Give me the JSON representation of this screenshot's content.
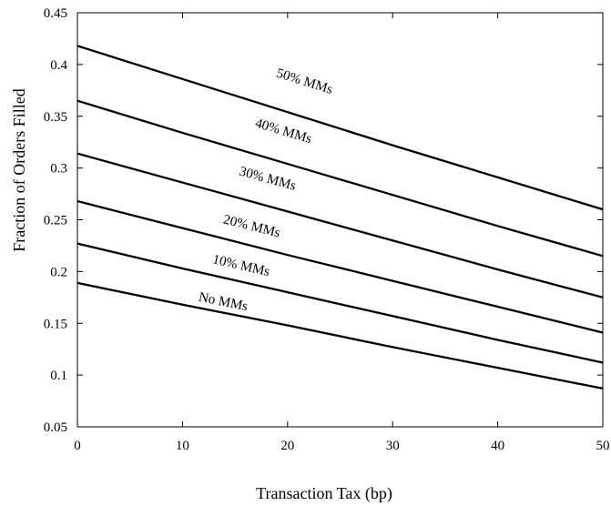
{
  "chart_data": {
    "type": "line",
    "xlabel": "Transaction Tax (bp)",
    "ylabel": "Fraction of Orders Filled",
    "xlim": [
      0,
      50
    ],
    "ylim": [
      0.05,
      0.45
    ],
    "x_ticks": [
      0,
      10,
      20,
      30,
      40,
      50
    ],
    "y_ticks": [
      0.05,
      0.1,
      0.15,
      0.2,
      0.25,
      0.3,
      0.35,
      0.4,
      0.45
    ],
    "x_tick_labels": [
      "0",
      "10",
      "20",
      "30",
      "40",
      "50"
    ],
    "y_tick_labels": [
      "0.05",
      "0.1",
      "0.15",
      "0.2",
      "0.25",
      "0.3",
      "0.35",
      "0.4",
      "0.45"
    ],
    "grid": false,
    "legend": "inline labels on lines",
    "series": [
      {
        "name": "50% MMs",
        "x": [
          0,
          10,
          20,
          30,
          40,
          50
        ],
        "values": [
          0.418,
          0.386,
          0.354,
          0.322,
          0.291,
          0.26
        ]
      },
      {
        "name": "40% MMs",
        "x": [
          0,
          10,
          20,
          30,
          40,
          50
        ],
        "values": [
          0.365,
          0.334,
          0.304,
          0.274,
          0.244,
          0.215
        ]
      },
      {
        "name": "30% MMs",
        "x": [
          0,
          10,
          20,
          30,
          40,
          50
        ],
        "values": [
          0.314,
          0.286,
          0.258,
          0.23,
          0.202,
          0.175
        ]
      },
      {
        "name": "20% MMs",
        "x": [
          0,
          10,
          20,
          30,
          40,
          50
        ],
        "values": [
          0.268,
          0.242,
          0.216,
          0.191,
          0.166,
          0.141
        ]
      },
      {
        "name": "10% MMs",
        "x": [
          0,
          10,
          20,
          30,
          40,
          50
        ],
        "values": [
          0.227,
          0.203,
          0.18,
          0.157,
          0.134,
          0.112
        ]
      },
      {
        "name": "No MMs",
        "x": [
          0,
          10,
          20,
          30,
          40,
          50
        ],
        "values": [
          0.189,
          0.168,
          0.148,
          0.127,
          0.107,
          0.087
        ]
      }
    ],
    "annotations": [
      {
        "text": "50% MMs",
        "x": 21.5,
        "y": 0.38
      },
      {
        "text": "40% MMs",
        "x": 19.5,
        "y": 0.332
      },
      {
        "text": "30% MMs",
        "x": 18.0,
        "y": 0.286
      },
      {
        "text": "20% MMs",
        "x": 16.5,
        "y": 0.24
      },
      {
        "text": "10% MMs",
        "x": 15.5,
        "y": 0.202
      },
      {
        "text": "No MMs",
        "x": 13.8,
        "y": 0.167
      }
    ]
  }
}
